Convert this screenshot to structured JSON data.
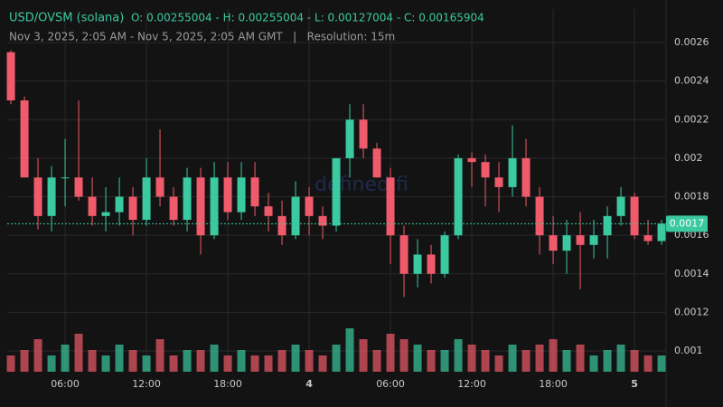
{
  "chart_data": {
    "type": "candlestick",
    "title": "USD/OVSM (solana)",
    "ohlc_summary": "O: 0.00255004 - H: 0.00255004 - L: 0.00127004 - C: 0.00165904",
    "subtitle": "Nov 3, 2025, 2:05 AM - Nov 5, 2025, 2:05 AM GMT   |   Resolution: 15m",
    "watermark": "defined.fi",
    "x": [
      2,
      3,
      4,
      5,
      6,
      7,
      8,
      9,
      10,
      11,
      12,
      13,
      14,
      15,
      16,
      17,
      18,
      19,
      20,
      21,
      22,
      23,
      24,
      25,
      26,
      27,
      28,
      29,
      30,
      31,
      32,
      33,
      34,
      35,
      36,
      37,
      38,
      39,
      40,
      41,
      42,
      43,
      44,
      45,
      46,
      47,
      48,
      49,
      50
    ],
    "open": [
      0.00255,
      0.0023,
      0.0019,
      0.0017,
      0.0019,
      0.0019,
      0.0018,
      0.0017,
      0.00172,
      0.0018,
      0.00168,
      0.0019,
      0.0018,
      0.00168,
      0.0019,
      0.0016,
      0.0019,
      0.00172,
      0.0019,
      0.00175,
      0.0017,
      0.0016,
      0.0018,
      0.0017,
      0.00165,
      0.002,
      0.0022,
      0.00205,
      0.0019,
      0.0016,
      0.0014,
      0.0015,
      0.0014,
      0.0016,
      0.002,
      0.00198,
      0.0019,
      0.00185,
      0.002,
      0.0018,
      0.0016,
      0.00152,
      0.0016,
      0.00155,
      0.0016,
      0.0017,
      0.0018,
      0.0016,
      0.00157
    ],
    "high": [
      0.00256,
      0.00232,
      0.002,
      0.00196,
      0.0021,
      0.0023,
      0.0019,
      0.00185,
      0.0019,
      0.00185,
      0.002,
      0.00215,
      0.00185,
      0.00195,
      0.00195,
      0.00198,
      0.00198,
      0.00198,
      0.00198,
      0.00182,
      0.00178,
      0.00188,
      0.00185,
      0.00175,
      0.002,
      0.00228,
      0.00228,
      0.00208,
      0.00195,
      0.00165,
      0.00158,
      0.00155,
      0.00162,
      0.00202,
      0.00203,
      0.00202,
      0.00198,
      0.00217,
      0.0021,
      0.00185,
      0.0017,
      0.00168,
      0.00172,
      0.00168,
      0.00175,
      0.00185,
      0.00182,
      0.00168,
      0.00168
    ],
    "low": [
      0.00228,
      0.0019,
      0.00163,
      0.00162,
      0.00175,
      0.00178,
      0.00165,
      0.00162,
      0.00165,
      0.0016,
      0.00165,
      0.00175,
      0.00165,
      0.00162,
      0.0015,
      0.00158,
      0.00168,
      0.00168,
      0.0017,
      0.00162,
      0.00155,
      0.00158,
      0.0016,
      0.00158,
      0.00162,
      0.0019,
      0.002,
      0.0019,
      0.00145,
      0.00128,
      0.00133,
      0.00135,
      0.00138,
      0.00158,
      0.00185,
      0.00175,
      0.00172,
      0.0018,
      0.00175,
      0.0015,
      0.00145,
      0.0014,
      0.00132,
      0.00148,
      0.00148,
      0.00165,
      0.00158,
      0.00155,
      0.00155
    ],
    "close": [
      0.0023,
      0.0019,
      0.0017,
      0.0019,
      0.0019,
      0.0018,
      0.0017,
      0.00172,
      0.0018,
      0.00168,
      0.0019,
      0.0018,
      0.00168,
      0.0019,
      0.0016,
      0.0019,
      0.00172,
      0.0019,
      0.00175,
      0.0017,
      0.0016,
      0.0018,
      0.0017,
      0.00165,
      0.002,
      0.0022,
      0.00205,
      0.0019,
      0.0016,
      0.0014,
      0.0015,
      0.0014,
      0.0016,
      0.002,
      0.00198,
      0.0019,
      0.00185,
      0.002,
      0.0018,
      0.0016,
      0.00152,
      0.0016,
      0.00155,
      0.0016,
      0.0017,
      0.0018,
      0.0016,
      0.00157,
      0.00166
    ],
    "volume": [
      3,
      4,
      6,
      3,
      5,
      7,
      4,
      3,
      5,
      4,
      3,
      6,
      3,
      4,
      4,
      5,
      3,
      4,
      3,
      3,
      4,
      5,
      4,
      3,
      5,
      8,
      6,
      4,
      7,
      6,
      5,
      4,
      4,
      6,
      5,
      4,
      3,
      5,
      4,
      5,
      6,
      4,
      5,
      3,
      4,
      5,
      4,
      3,
      3
    ],
    "vlim": [
      0,
      10
    ],
    "up_color": "#3bc9a0",
    "down_color": "#ef5b6a",
    "last_price": 0.00166,
    "last_price_label": "0.0017",
    "xlim": [
      1.73,
      50.33
    ],
    "ylim": [
      0.000892,
      0.002774
    ],
    "xticks": [
      {
        "value": 6,
        "label": "06:00"
      },
      {
        "value": 12,
        "label": "12:00"
      },
      {
        "value": 18,
        "label": "18:00"
      },
      {
        "value": 24,
        "label": "4"
      },
      {
        "value": 30,
        "label": "06:00"
      },
      {
        "value": 36,
        "label": "12:00"
      },
      {
        "value": 42,
        "label": "18:00"
      },
      {
        "value": 48,
        "label": "5"
      }
    ],
    "yticks": [
      0.001,
      0.0012,
      0.0014,
      0.0016,
      0.0018,
      0.002,
      0.0022,
      0.0024,
      0.0026
    ],
    "grid": true
  }
}
